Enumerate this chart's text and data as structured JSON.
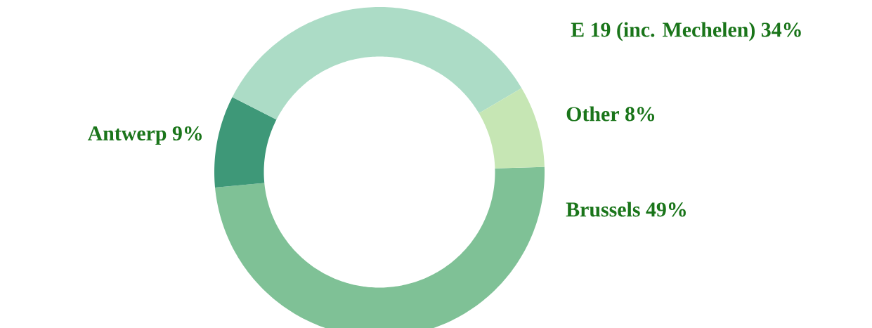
{
  "chart_data": {
    "type": "donut",
    "categories": [
      "Brussels",
      "Antwerp",
      "E 19 (inc. Mechelen)",
      "Other"
    ],
    "values": [
      49,
      9,
      34,
      8
    ],
    "value_labels": [
      "49%",
      "9%",
      "34%",
      "8%"
    ],
    "colors": [
      "#7fc196",
      "#3e9878",
      "#acdcc6",
      "#c6e6b4"
    ]
  }
}
